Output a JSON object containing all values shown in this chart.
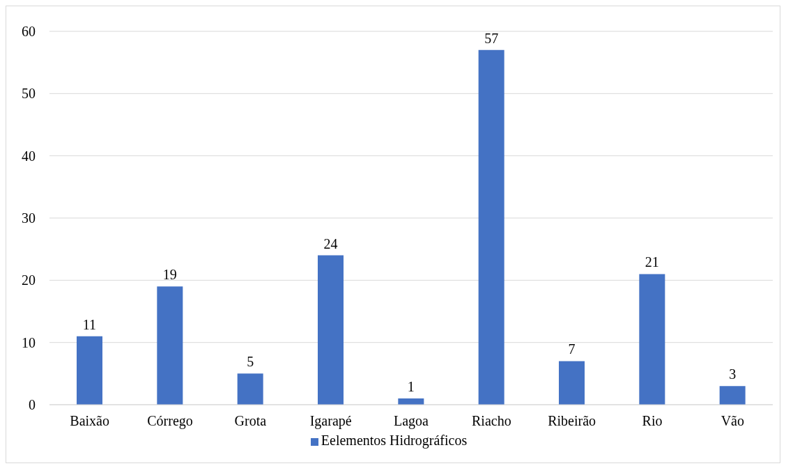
{
  "chart_data": {
    "type": "bar",
    "categories": [
      "Baixão",
      "Córrego",
      "Grota",
      "Igarapé",
      "Lagoa",
      "Riacho",
      "Ribeirão",
      "Rio",
      "Vão"
    ],
    "series": [
      {
        "name": "Eelementos Hidrográficos",
        "color": "#4472c4",
        "values": [
          11,
          19,
          5,
          24,
          1,
          57,
          7,
          21,
          3
        ]
      }
    ],
    "ylim": [
      0,
      60
    ],
    "yticks": [
      0,
      10,
      20,
      30,
      40,
      50,
      60
    ],
    "grid": "y",
    "legend": "bottom",
    "data_labels": true
  }
}
